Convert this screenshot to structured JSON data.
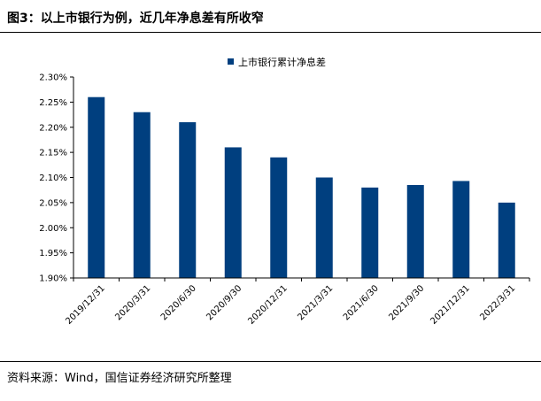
{
  "figure": {
    "title": "图3：以上市银行为例，近几年净息差有所收窄",
    "source": "资料来源：Wind，国信证券经济研究所整理"
  },
  "chart_data": {
    "type": "bar",
    "categories": [
      "2019/12/31",
      "2020/3/31",
      "2020/6/30",
      "2020/9/30",
      "2020/12/31",
      "2021/3/31",
      "2021/6/30",
      "2021/9/30",
      "2021/12/31",
      "2022/3/31"
    ],
    "series": [
      {
        "name": "上市银行累计净息差",
        "values": [
          2.26,
          2.23,
          2.21,
          2.16,
          2.14,
          2.1,
          2.08,
          2.085,
          2.093,
          2.05
        ]
      }
    ],
    "ylim": [
      1.9,
      2.3
    ],
    "yticks": [
      1.9,
      1.95,
      2.0,
      2.05,
      2.1,
      2.15,
      2.2,
      2.25,
      2.3
    ],
    "ytick_labels": [
      "1.90%",
      "1.95%",
      "2.00%",
      "2.05%",
      "2.10%",
      "2.15%",
      "2.20%",
      "2.25%",
      "2.30%"
    ],
    "xlabel": "",
    "ylabel": "",
    "grid": false,
    "legend_position": "top-center",
    "bar_color": "#003f7f"
  }
}
